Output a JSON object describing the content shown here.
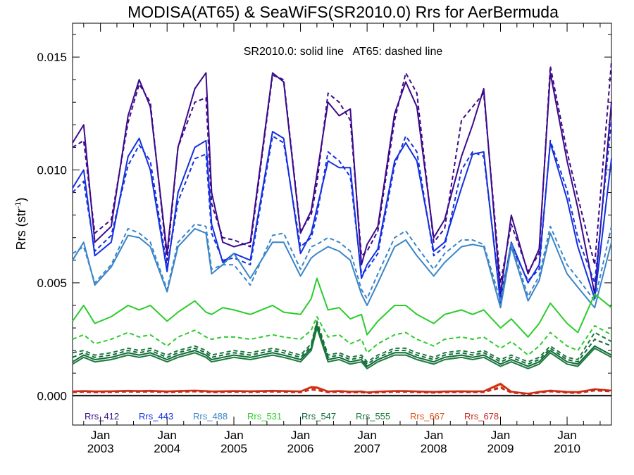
{
  "chart_data": {
    "type": "line",
    "title": "MODISA(AT65) & SeaWiFS(SR2010.0)  Rrs for AerBermuda",
    "ylabel": "Rrs (str",
    "ylabel_sup": "-1",
    "ylabel_close": ")",
    "annotation": "SR2010.0: solid line   AT65: dashed line",
    "ylim": [
      -0.0013,
      0.0165
    ],
    "xlim": [
      "2002-08-01",
      "2010-09-01"
    ],
    "y_ticks": [
      {
        "value": 0.0,
        "label": "0.000"
      },
      {
        "value": 0.005,
        "label": "0.005"
      },
      {
        "value": 0.01,
        "label": "0.010"
      },
      {
        "value": 0.015,
        "label": "0.015"
      }
    ],
    "x_ticks": [
      {
        "date": "2003-01-01",
        "month": "Jan",
        "year": "2003"
      },
      {
        "date": "2004-01-01",
        "month": "Jan",
        "year": "2004"
      },
      {
        "date": "2005-01-01",
        "month": "Jan",
        "year": "2005"
      },
      {
        "date": "2006-01-01",
        "month": "Jan",
        "year": "2006"
      },
      {
        "date": "2007-01-01",
        "month": "Jan",
        "year": "2007"
      },
      {
        "date": "2008-01-01",
        "month": "Jan",
        "year": "2008"
      },
      {
        "date": "2009-01-01",
        "month": "Jan",
        "year": "2009"
      },
      {
        "date": "2010-01-01",
        "month": "Jan",
        "year": "2010"
      }
    ],
    "zero_line": 0.0,
    "x": [
      "2002-08-01",
      "2002-10-01",
      "2002-12-01",
      "2003-03-01",
      "2003-06-01",
      "2003-08-01",
      "2003-10-01",
      "2004-01-01",
      "2004-03-01",
      "2004-06-01",
      "2004-08-01",
      "2004-09-01",
      "2004-11-01",
      "2005-01-01",
      "2005-04-01",
      "2005-08-01",
      "2005-10-01",
      "2006-01-01",
      "2006-03-01",
      "2006-04-01",
      "2006-06-01",
      "2006-08-01",
      "2006-10-01",
      "2006-12-01",
      "2007-01-01",
      "2007-03-01",
      "2007-06-01",
      "2007-08-01",
      "2007-10-01",
      "2008-01-01",
      "2008-03-01",
      "2008-06-01",
      "2008-08-01",
      "2008-10-01",
      "2009-01-01",
      "2009-03-01",
      "2009-06-01",
      "2009-08-01",
      "2009-10-01",
      "2010-01-01",
      "2010-03-01",
      "2010-06-01",
      "2010-09-01"
    ],
    "series": [
      {
        "name": "Rrs_412",
        "color": "#3c0a8a",
        "solid": [
          0.0112,
          0.012,
          0.0068,
          0.0075,
          0.0124,
          0.014,
          0.0128,
          0.0063,
          0.011,
          0.0136,
          0.0143,
          0.009,
          0.0068,
          0.0066,
          0.0068,
          0.0143,
          0.0139,
          0.0072,
          0.0082,
          0.0098,
          0.013,
          0.0124,
          0.0127,
          0.0058,
          0.0067,
          0.0075,
          0.0125,
          0.0139,
          0.0128,
          0.007,
          0.0078,
          0.0106,
          0.012,
          0.0136,
          0.0045,
          0.008,
          0.0054,
          0.0065,
          0.0143,
          0.0104,
          0.0083,
          0.0045,
          0.013
        ],
        "dashed": [
          0.011,
          0.0113,
          0.0072,
          0.0078,
          0.0121,
          0.0138,
          0.013,
          0.006,
          0.011,
          0.013,
          0.0132,
          0.0085,
          0.007,
          0.0069,
          0.0066,
          0.0142,
          0.014,
          0.0073,
          0.008,
          0.0094,
          0.0134,
          0.013,
          0.0122,
          0.0062,
          0.0064,
          0.0073,
          0.0122,
          0.0143,
          0.0134,
          0.0068,
          0.0074,
          0.0122,
          0.0128,
          0.0134,
          0.005,
          0.0076,
          0.0055,
          0.0063,
          0.0146,
          0.0108,
          0.0088,
          0.0058,
          0.0148
        ]
      },
      {
        "name": "Rrs_443",
        "color": "#1430e0",
        "solid": [
          0.0092,
          0.01,
          0.0062,
          0.0068,
          0.0106,
          0.0114,
          0.01,
          0.0055,
          0.009,
          0.011,
          0.0113,
          0.0076,
          0.0059,
          0.0063,
          0.006,
          0.0117,
          0.0114,
          0.0063,
          0.0072,
          0.0083,
          0.0104,
          0.0101,
          0.0101,
          0.0052,
          0.0058,
          0.0065,
          0.0104,
          0.0112,
          0.0104,
          0.0064,
          0.0068,
          0.0092,
          0.0107,
          0.0108,
          0.0041,
          0.0068,
          0.005,
          0.0058,
          0.0112,
          0.0087,
          0.0066,
          0.0043,
          0.0105
        ],
        "dashed": [
          0.009,
          0.0095,
          0.0064,
          0.0071,
          0.0102,
          0.0111,
          0.0104,
          0.0057,
          0.0086,
          0.0105,
          0.0107,
          0.0072,
          0.006,
          0.0061,
          0.0058,
          0.0115,
          0.0112,
          0.0066,
          0.007,
          0.008,
          0.0108,
          0.0104,
          0.0097,
          0.0054,
          0.0056,
          0.0063,
          0.0102,
          0.0115,
          0.0108,
          0.0062,
          0.0066,
          0.01,
          0.0108,
          0.0106,
          0.0044,
          0.0066,
          0.0051,
          0.0056,
          0.0113,
          0.0091,
          0.007,
          0.005,
          0.0122
        ]
      },
      {
        "name": "Rrs_488",
        "color": "#3a85c8",
        "solid": [
          0.006,
          0.0068,
          0.0049,
          0.0057,
          0.0071,
          0.007,
          0.0066,
          0.0046,
          0.0066,
          0.0074,
          0.0072,
          0.0054,
          0.0058,
          0.0063,
          0.0052,
          0.0068,
          0.0068,
          0.0053,
          0.0061,
          0.0063,
          0.0066,
          0.0064,
          0.006,
          0.0045,
          0.004,
          0.005,
          0.0066,
          0.0069,
          0.0062,
          0.0053,
          0.0059,
          0.0066,
          0.0067,
          0.0066,
          0.0039,
          0.0066,
          0.0042,
          0.0051,
          0.0072,
          0.0054,
          0.0048,
          0.0039,
          0.0068
        ],
        "dashed": [
          0.0063,
          0.0066,
          0.005,
          0.0058,
          0.0074,
          0.0072,
          0.0068,
          0.0047,
          0.0068,
          0.0076,
          0.0075,
          0.0056,
          0.0058,
          0.0058,
          0.0049,
          0.0071,
          0.0072,
          0.0056,
          0.0066,
          0.0067,
          0.007,
          0.0068,
          0.0064,
          0.0047,
          0.0043,
          0.0054,
          0.007,
          0.0073,
          0.0066,
          0.0056,
          0.0063,
          0.0069,
          0.0069,
          0.0067,
          0.0042,
          0.0068,
          0.0044,
          0.0053,
          0.0075,
          0.0058,
          0.0052,
          0.0042,
          0.0075
        ]
      },
      {
        "name": "Rrs_531",
        "color": "#2ccc2c",
        "solid": [
          0.0033,
          0.004,
          0.0032,
          0.0035,
          0.004,
          0.0038,
          0.004,
          0.0033,
          0.0037,
          0.0042,
          0.0037,
          0.0036,
          0.0039,
          0.0038,
          0.0036,
          0.004,
          0.0037,
          0.0036,
          0.0043,
          0.0052,
          0.0038,
          0.0039,
          0.0034,
          0.0036,
          0.0027,
          0.0033,
          0.004,
          0.004,
          0.0036,
          0.0032,
          0.0036,
          0.0038,
          0.0036,
          0.0038,
          0.003,
          0.0034,
          0.0026,
          0.0032,
          0.0041,
          0.0032,
          0.0028,
          0.0045,
          0.0039
        ],
        "dashed": [
          0.0025,
          0.0027,
          0.0023,
          0.0025,
          0.0028,
          0.0026,
          0.0027,
          0.0022,
          0.0026,
          0.0029,
          0.0026,
          0.0025,
          0.0026,
          0.0026,
          0.0025,
          0.0027,
          0.0026,
          0.0025,
          0.0029,
          0.0035,
          0.0026,
          0.0027,
          0.0023,
          0.0025,
          0.0019,
          0.0023,
          0.0027,
          0.0028,
          0.0025,
          0.0022,
          0.0025,
          0.0026,
          0.0025,
          0.0026,
          0.0021,
          0.0024,
          0.0018,
          0.0022,
          0.0028,
          0.0022,
          0.002,
          0.0031,
          0.0027
        ]
      },
      {
        "name": "Rrs_547",
        "color": "#0e6a38",
        "solid": [
          0.0015,
          0.0018,
          0.0016,
          0.0017,
          0.0019,
          0.0018,
          0.0019,
          0.0016,
          0.0018,
          0.002,
          0.0018,
          0.0016,
          0.0017,
          0.0018,
          0.0017,
          0.0019,
          0.0018,
          0.0016,
          0.0021,
          0.0031,
          0.0016,
          0.0017,
          0.0015,
          0.0016,
          0.0013,
          0.0016,
          0.0019,
          0.0019,
          0.0017,
          0.0015,
          0.0017,
          0.0018,
          0.0017,
          0.0018,
          0.0014,
          0.0016,
          0.0013,
          0.0015,
          0.002,
          0.0015,
          0.0014,
          0.0022,
          0.0018
        ],
        "dashed": [
          0.0017,
          0.0019,
          0.0017,
          0.0018,
          0.002,
          0.0019,
          0.002,
          0.0017,
          0.0019,
          0.0021,
          0.0019,
          0.0017,
          0.0018,
          0.0019,
          0.0018,
          0.002,
          0.0019,
          0.0017,
          0.0022,
          0.0032,
          0.0017,
          0.0018,
          0.0016,
          0.0017,
          0.0014,
          0.0017,
          0.002,
          0.002,
          0.0018,
          0.0016,
          0.0018,
          0.0019,
          0.0018,
          0.0019,
          0.0015,
          0.0017,
          0.0014,
          0.0016,
          0.0021,
          0.0016,
          0.0015,
          0.0025,
          0.0022
        ]
      },
      {
        "name": "Rrs_555",
        "color": "#1a7a3a",
        "solid": [
          0.0014,
          0.0017,
          0.0015,
          0.0016,
          0.0018,
          0.0017,
          0.0018,
          0.0015,
          0.0017,
          0.0019,
          0.0017,
          0.0015,
          0.0016,
          0.0017,
          0.0016,
          0.0018,
          0.0017,
          0.0015,
          0.002,
          0.003,
          0.0015,
          0.0016,
          0.0014,
          0.0015,
          0.0012,
          0.0015,
          0.0018,
          0.0018,
          0.0016,
          0.0014,
          0.0016,
          0.0017,
          0.0016,
          0.0017,
          0.0013,
          0.0015,
          0.0012,
          0.0014,
          0.0019,
          0.0014,
          0.0013,
          0.0021,
          0.0017
        ],
        "dashed": [
          0.0019,
          0.002,
          0.0018,
          0.0019,
          0.0021,
          0.002,
          0.0021,
          0.0018,
          0.002,
          0.0022,
          0.002,
          0.0018,
          0.0019,
          0.002,
          0.0019,
          0.0021,
          0.002,
          0.0018,
          0.0023,
          0.0033,
          0.0018,
          0.0019,
          0.0017,
          0.0018,
          0.0015,
          0.0018,
          0.0021,
          0.0021,
          0.0019,
          0.0017,
          0.0019,
          0.002,
          0.0019,
          0.002,
          0.0016,
          0.0018,
          0.0015,
          0.0017,
          0.0022,
          0.0017,
          0.0016,
          0.0028,
          0.0024
        ]
      },
      {
        "name": "Rrs_667",
        "color": "#e05010",
        "solid": [
          0.0002,
          0.00022,
          0.0002,
          0.00021,
          0.00023,
          0.00022,
          0.00023,
          0.0002,
          0.00022,
          0.00024,
          0.00022,
          0.0002,
          0.00021,
          0.00022,
          0.00021,
          0.00023,
          0.00022,
          0.0002,
          0.0004,
          0.00038,
          0.0002,
          0.00022,
          0.00019,
          0.0002,
          0.00016,
          0.00019,
          0.00022,
          0.00022,
          0.0002,
          0.00018,
          0.0002,
          0.00021,
          0.0002,
          0.00021,
          0.00055,
          0.00019,
          0.0001,
          0.00018,
          0.00024,
          0.00018,
          0.00017,
          0.0003,
          0.00024
        ],
        "dashed": [
          0.00017,
          0.00019,
          0.00017,
          0.00018,
          0.0002,
          0.00019,
          0.0002,
          0.00017,
          0.00019,
          0.00021,
          0.00019,
          0.00017,
          0.00018,
          0.00019,
          0.00018,
          0.0002,
          0.00019,
          0.00017,
          0.0003,
          0.00028,
          0.00017,
          0.00019,
          0.00016,
          0.00017,
          0.00013,
          0.00016,
          0.00019,
          0.00019,
          0.00017,
          0.00015,
          0.00017,
          0.00018,
          0.00017,
          0.00018,
          0.0004,
          0.00016,
          8e-05,
          0.00015,
          0.00021,
          0.00015,
          0.00014,
          0.00026,
          0.00021
        ]
      },
      {
        "name": "Rrs_678",
        "color": "#c8281e",
        "solid": [
          0.00018,
          0.0002,
          0.00018,
          0.00019,
          0.00021,
          0.0002,
          0.00021,
          0.00018,
          0.0002,
          0.00022,
          0.0002,
          0.00018,
          0.00019,
          0.0002,
          0.00019,
          0.00021,
          0.0002,
          0.00018,
          0.00036,
          0.00034,
          0.00018,
          0.0002,
          0.00017,
          0.00018,
          0.00014,
          0.00017,
          0.0002,
          0.0002,
          0.00018,
          0.00016,
          0.00018,
          0.00019,
          0.00018,
          0.00019,
          0.0005,
          0.00017,
          9e-05,
          0.00016,
          0.00022,
          0.00016,
          0.00015,
          0.00028,
          0.00022
        ],
        "dashed": [
          0.00014,
          0.00016,
          0.00014,
          0.00015,
          0.00017,
          0.00016,
          0.00017,
          0.00014,
          0.00016,
          0.00018,
          0.00016,
          0.00014,
          0.00015,
          0.00016,
          0.00015,
          0.00017,
          0.00016,
          0.00014,
          0.00026,
          0.00024,
          0.00014,
          0.00016,
          0.00013,
          0.00014,
          0.00011,
          0.00013,
          0.00016,
          0.00016,
          0.00014,
          0.00012,
          0.00014,
          0.00015,
          0.00014,
          0.00015,
          0.00034,
          0.00013,
          6e-05,
          0.00012,
          0.00018,
          0.00012,
          0.00011,
          0.00022,
          0.00018
        ]
      }
    ]
  }
}
